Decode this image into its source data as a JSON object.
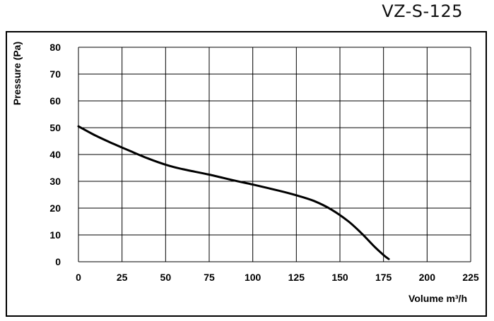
{
  "header": {
    "model": "VZ-S-125"
  },
  "chart_data": {
    "type": "line",
    "title": "VZ-S-125",
    "xlabel": "Volume m³/h",
    "ylabel": "Pressure (Pa)",
    "xlim": [
      0,
      225
    ],
    "ylim": [
      0,
      80
    ],
    "x_ticks": [
      0,
      25,
      50,
      75,
      100,
      125,
      150,
      175,
      200,
      225
    ],
    "y_ticks": [
      0,
      10,
      20,
      30,
      40,
      50,
      60,
      70,
      80
    ],
    "grid": true,
    "series": [
      {
        "x": [
          0,
          10,
          20,
          30,
          40,
          50,
          60,
          75,
          90,
          100,
          115,
          125,
          135,
          145,
          155,
          163,
          170,
          175,
          178
        ],
        "y": [
          50.5,
          47,
          44,
          41.2,
          38.5,
          36.2,
          34.5,
          32.5,
          30.2,
          28.8,
          26.5,
          24.8,
          22.7,
          19.5,
          15,
          10.2,
          5.5,
          2.5,
          1
        ],
        "color": "#000000"
      }
    ]
  }
}
